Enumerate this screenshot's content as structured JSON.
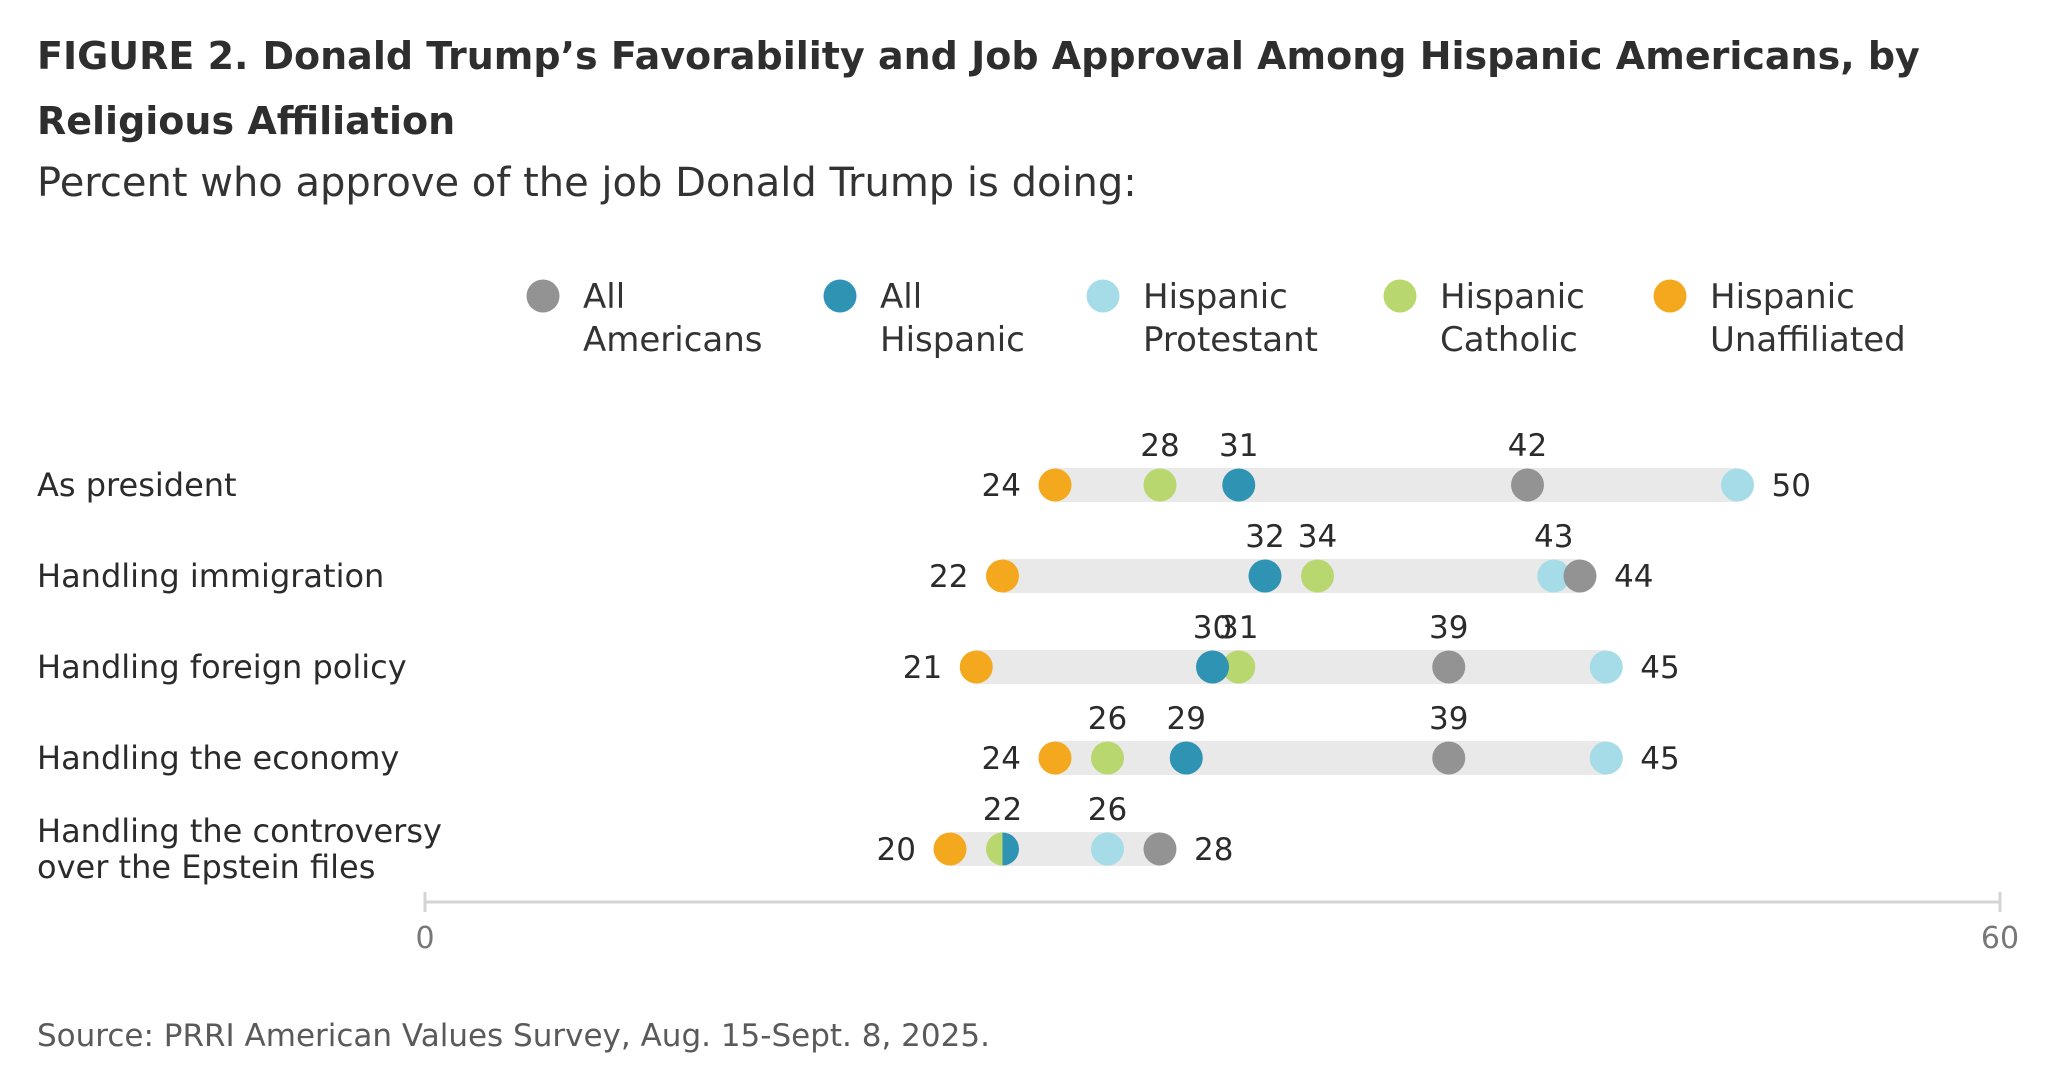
{
  "figure": {
    "label": "FIGURE 2.",
    "title": "Donald Trump’s Favorability and Job Approval Among Hispanic Americans, by Religious Affiliation",
    "subtitle": "Percent who approve of the job Donald Trump is doing:",
    "source": "Source: PRRI American Values Survey, Aug. 15-Sept. 8, 2025."
  },
  "chart_data": {
    "type": "scatter",
    "subtype": "dot-plot",
    "categories": [
      "As president",
      "Handling immigration",
      "Handling foreign policy",
      "Handling the economy",
      "Handling the controversy over the Epstein files"
    ],
    "series": [
      {
        "name": "All Americans",
        "legend": [
          "All",
          "Americans"
        ],
        "color": "#939393",
        "values": [
          42,
          44,
          39,
          39,
          28
        ]
      },
      {
        "name": "All Hispanic",
        "legend": [
          "All",
          "Hispanic"
        ],
        "color": "#2f93b3",
        "values": [
          31,
          32,
          30,
          29,
          22
        ]
      },
      {
        "name": "Hispanic Protestant",
        "legend": [
          "Hispanic",
          "Protestant"
        ],
        "color": "#a6dce7",
        "values": [
          50,
          43,
          45,
          45,
          26
        ]
      },
      {
        "name": "Hispanic Catholic",
        "legend": [
          "Hispanic",
          "Catholic"
        ],
        "color": "#b8d76e",
        "values": [
          28,
          34,
          31,
          26,
          22
        ]
      },
      {
        "name": "Hispanic Unaffiliated",
        "legend": [
          "Hispanic",
          "Unaffiliated"
        ],
        "color": "#f4a81d",
        "values": [
          24,
          22,
          21,
          24,
          20
        ]
      }
    ],
    "xlim": [
      0,
      60
    ],
    "xticks": [
      0,
      60
    ],
    "xlabel": "",
    "ylabel": "",
    "grid": false,
    "legend_position": "top"
  }
}
